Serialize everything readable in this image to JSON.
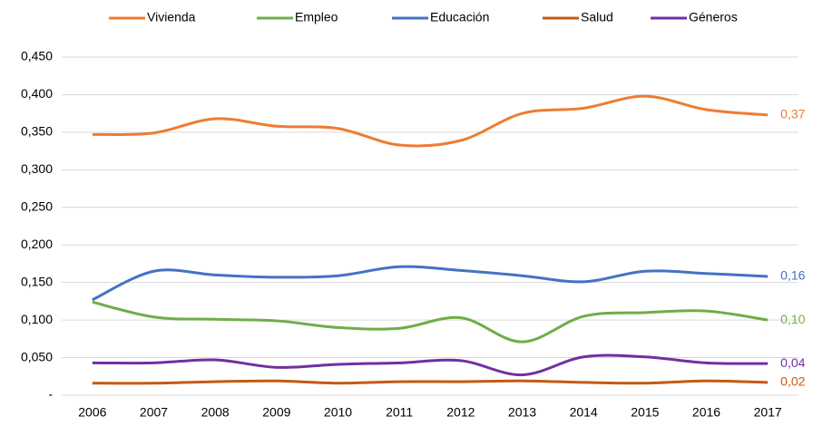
{
  "chart_data": {
    "type": "line",
    "categories": [
      "2006",
      "2007",
      "2008",
      "2009",
      "2010",
      "2011",
      "2012",
      "2013",
      "2014",
      "2015",
      "2016",
      "2017"
    ],
    "series": [
      {
        "name": "Vivienda",
        "color": "#ed7d31",
        "values": [
          0.347,
          0.349,
          0.368,
          0.358,
          0.355,
          0.333,
          0.339,
          0.375,
          0.382,
          0.398,
          0.38,
          0.373
        ],
        "value_labels": [
          null,
          null,
          null,
          null,
          null,
          null,
          null,
          null,
          null,
          null,
          null,
          "0,37"
        ]
      },
      {
        "name": "Empleo",
        "color": "#70ad47",
        "values": [
          0.124,
          0.104,
          0.101,
          0.099,
          0.09,
          0.089,
          0.103,
          0.071,
          0.105,
          0.11,
          0.112,
          0.1
        ],
        "value_labels": [
          null,
          null,
          null,
          null,
          null,
          null,
          null,
          null,
          null,
          null,
          null,
          "0,10"
        ]
      },
      {
        "name": "Educación",
        "color": "#4472c4",
        "values": [
          0.127,
          0.165,
          0.16,
          0.157,
          0.159,
          0.171,
          0.166,
          0.159,
          0.151,
          0.165,
          0.162,
          0.158
        ],
        "value_labels": [
          null,
          null,
          null,
          null,
          null,
          null,
          null,
          null,
          null,
          null,
          null,
          "0,16"
        ]
      },
      {
        "name": "Salud",
        "color": "#c55a11",
        "values": [
          0.016,
          0.016,
          0.018,
          0.019,
          0.016,
          0.018,
          0.018,
          0.019,
          0.017,
          0.016,
          0.019,
          0.017
        ],
        "value_labels": [
          null,
          null,
          null,
          null,
          null,
          null,
          null,
          null,
          null,
          null,
          null,
          "0,02"
        ]
      },
      {
        "name": "Géneros",
        "color": "#7030a0",
        "values": [
          0.043,
          0.043,
          0.047,
          0.037,
          0.041,
          0.043,
          0.046,
          0.027,
          0.051,
          0.051,
          0.043,
          0.042
        ],
        "value_labels": [
          null,
          null,
          null,
          null,
          null,
          null,
          null,
          null,
          null,
          null,
          null,
          "0,04"
        ]
      }
    ],
    "ylim": [
      0,
      0.45
    ],
    "yticks": [
      {
        "value": 0,
        "label": "-"
      },
      {
        "value": 0.05,
        "label": "0,050"
      },
      {
        "value": 0.1,
        "label": "0,100"
      },
      {
        "value": 0.15,
        "label": "0,150"
      },
      {
        "value": 0.2,
        "label": "0,200"
      },
      {
        "value": 0.25,
        "label": "0,250"
      },
      {
        "value": 0.3,
        "label": "0,300"
      },
      {
        "value": 0.35,
        "label": "0,350"
      },
      {
        "value": 0.4,
        "label": "0,400"
      },
      {
        "value": 0.45,
        "label": "0,450"
      }
    ],
    "grid": true,
    "smooth": true,
    "legend": "top"
  }
}
